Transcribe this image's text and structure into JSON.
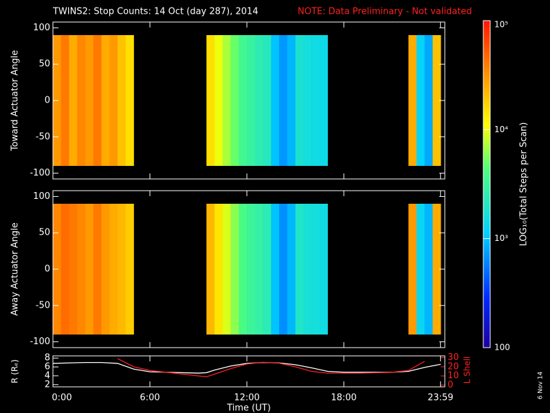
{
  "title": "TWINS2: Stop Counts: 14 Oct (day 287), 2014",
  "note": "NOTE: Data Preliminary - Not validated",
  "date_stamp": "6 Nov 14",
  "colorbar": {
    "label": "LOG₁₀(Total Steps per Scan)",
    "log": true,
    "zlim": [
      100,
      100000
    ],
    "zticks": [
      {
        "value": 100000,
        "label": "10⁵"
      },
      {
        "value": 10000,
        "label": "10⁴"
      },
      {
        "value": 1000,
        "label": "10³"
      },
      100
    ]
  },
  "chart_data": [
    {
      "type": "heatmap",
      "ylabel": "Toward Actuator Angle",
      "angles": [
        -90,
        90
      ],
      "xlim": [
        0,
        24.25
      ],
      "ylim": [
        -108,
        108
      ],
      "yticks": [
        100,
        50,
        0,
        -50,
        -100
      ],
      "x": [
        0.25,
        0.75,
        1.25,
        1.75,
        2.25,
        2.75,
        3.25,
        3.75,
        4.25,
        4.75,
        5.25,
        5.75,
        6.25,
        6.75,
        7.25,
        7.75,
        8.25,
        8.75,
        9.25,
        9.75,
        10.25,
        10.75,
        11.25,
        11.75,
        12.25,
        12.75,
        13.25,
        13.75,
        14.25,
        14.75,
        15.25,
        15.75,
        16.25,
        16.75,
        17.25,
        17.75,
        18.25,
        18.75,
        19.25,
        19.75,
        20.25,
        20.75,
        21.25,
        21.75,
        22.25,
        22.75,
        23.25,
        23.75
      ],
      "values": [
        30000,
        40000,
        25000,
        35000,
        30000,
        40000,
        25000,
        30000,
        20000,
        15000,
        null,
        null,
        null,
        null,
        null,
        null,
        null,
        null,
        null,
        15000,
        10000,
        7000,
        5000,
        3500,
        3000,
        2500,
        2200,
        1000,
        700,
        900,
        1800,
        1600,
        1500,
        1400,
        null,
        null,
        null,
        null,
        null,
        null,
        null,
        null,
        null,
        null,
        25000,
        1200,
        800,
        20000
      ]
    },
    {
      "type": "heatmap",
      "ylabel": "Away Actuator Angle",
      "angles": [
        -90,
        90
      ],
      "xlim": [
        0,
        24.25
      ],
      "ylim": [
        -108,
        108
      ],
      "yticks": [
        100,
        50,
        0,
        -50,
        -100
      ],
      "x": [
        0.25,
        0.75,
        1.25,
        1.75,
        2.25,
        2.75,
        3.25,
        3.75,
        4.25,
        4.75,
        5.25,
        5.75,
        6.25,
        6.75,
        7.25,
        7.75,
        8.25,
        8.75,
        9.25,
        9.75,
        10.25,
        10.75,
        11.25,
        11.75,
        12.25,
        12.75,
        13.25,
        13.75,
        14.25,
        14.75,
        15.25,
        15.75,
        16.25,
        16.75,
        17.25,
        17.75,
        18.25,
        18.75,
        19.25,
        19.75,
        20.25,
        20.75,
        21.25,
        21.75,
        22.25,
        22.75,
        23.25,
        23.75
      ],
      "values": [
        35000,
        45000,
        40000,
        35000,
        30000,
        40000,
        30000,
        25000,
        22000,
        18000,
        null,
        null,
        null,
        null,
        null,
        null,
        null,
        null,
        null,
        22000,
        14000,
        9000,
        6000,
        4000,
        3200,
        2800,
        2400,
        1000,
        650,
        900,
        2000,
        1700,
        1600,
        1500,
        null,
        null,
        null,
        null,
        null,
        null,
        null,
        null,
        null,
        null,
        30000,
        1300,
        900,
        25000
      ]
    },
    {
      "type": "line",
      "xlabel": "Time (UT)",
      "ylabel": "R (Rₑ)",
      "y2label": "L Shell",
      "xlim": [
        0,
        24.25
      ],
      "ylim": [
        1.5,
        8.5
      ],
      "yticks": [
        2,
        4,
        6,
        8
      ],
      "y2lim": [
        -2,
        32
      ],
      "y2ticks": [
        0,
        10,
        20,
        30
      ],
      "xticks": [
        {
          "value": 0,
          "label": "0:00"
        },
        {
          "value": 6,
          "label": "6:00"
        },
        {
          "value": 12,
          "label": "12:00"
        },
        {
          "value": 18,
          "label": "18:00"
        },
        {
          "value": 23.983,
          "label": "23:59"
        }
      ],
      "x": [
        0,
        1,
        2,
        3,
        4,
        5,
        6,
        7,
        8,
        9,
        9.5,
        10,
        11,
        12,
        13,
        14,
        15,
        16,
        17,
        18,
        19,
        20,
        21,
        22,
        23,
        24
      ],
      "series": [
        {
          "name": "R",
          "color": "#ffffff",
          "values": [
            6.8,
            6.9,
            7.0,
            7.0,
            6.8,
            5.5,
            4.9,
            4.8,
            4.7,
            4.6,
            4.7,
            5.3,
            6.2,
            6.8,
            7.0,
            6.9,
            6.5,
            5.8,
            5.0,
            4.8,
            4.8,
            4.8,
            4.8,
            5.0,
            5.9,
            6.6
          ]
        },
        {
          "name": "L Shell",
          "color": "#ff2020",
          "axis": "y2",
          "values": [
            null,
            null,
            null,
            null,
            29,
            20,
            16,
            14,
            12,
            10,
            9,
            12,
            18,
            23,
            25,
            24,
            20,
            15,
            13,
            13,
            13,
            13.5,
            14,
            16,
            26,
            null
          ]
        }
      ]
    }
  ]
}
